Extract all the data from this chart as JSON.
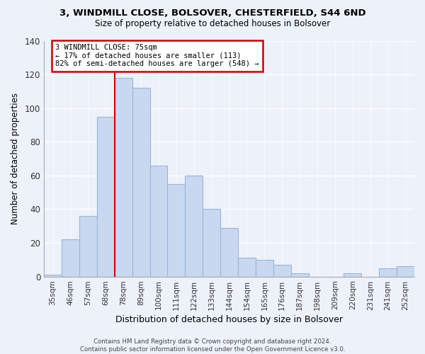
{
  "title": "3, WINDMILL CLOSE, BOLSOVER, CHESTERFIELD, S44 6ND",
  "subtitle": "Size of property relative to detached houses in Bolsover",
  "xlabel": "Distribution of detached houses by size in Bolsover",
  "ylabel": "Number of detached properties",
  "bar_labels": [
    "35sqm",
    "46sqm",
    "57sqm",
    "68sqm",
    "78sqm",
    "89sqm",
    "100sqm",
    "111sqm",
    "122sqm",
    "133sqm",
    "144sqm",
    "154sqm",
    "165sqm",
    "176sqm",
    "187sqm",
    "198sqm",
    "209sqm",
    "220sqm",
    "231sqm",
    "241sqm",
    "252sqm"
  ],
  "bar_values": [
    1,
    22,
    36,
    95,
    118,
    112,
    66,
    55,
    60,
    40,
    29,
    11,
    10,
    7,
    2,
    0,
    0,
    2,
    0,
    5,
    6
  ],
  "bar_color": "#c8d8f0",
  "bar_edge_color": "#9ab4d8",
  "reference_line_index": 4,
  "reference_line_color": "#cc0000",
  "annotation_text": "3 WINDMILL CLOSE: 75sqm\n← 17% of detached houses are smaller (113)\n82% of semi-detached houses are larger (548) →",
  "annotation_box_color": "white",
  "annotation_box_edge_color": "#cc0000",
  "ylim": [
    0,
    140
  ],
  "yticks": [
    0,
    20,
    40,
    60,
    80,
    100,
    120,
    140
  ],
  "footer": "Contains HM Land Registry data © Crown copyright and database right 2024.\nContains public sector information licensed under the Open Government Licence v3.0.",
  "background_color": "#edf1fa",
  "grid_color": "white"
}
